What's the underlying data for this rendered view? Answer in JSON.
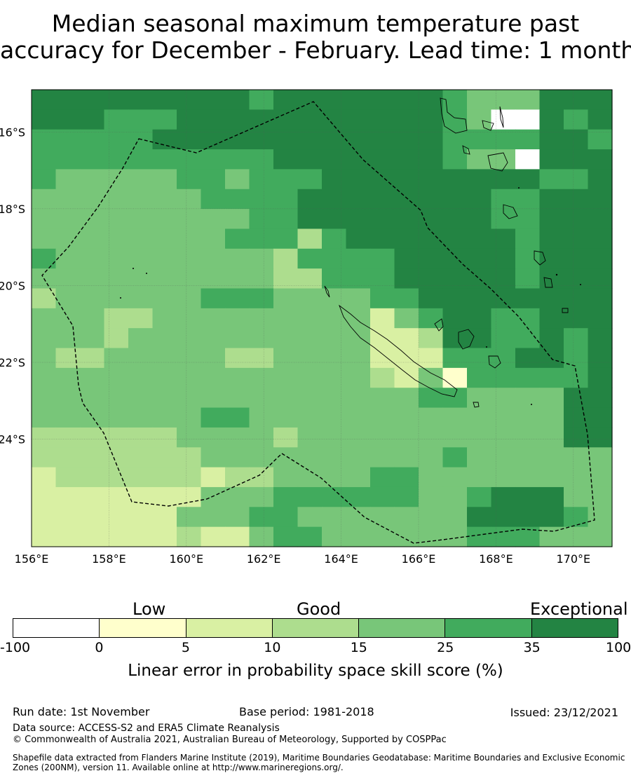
{
  "title": {
    "line1": "Median seasonal maximum temperature past",
    "line2": "accuracy for December - February. Lead time: 1 month"
  },
  "map": {
    "lon_labels": [
      "156°E",
      "158°E",
      "160°E",
      "162°E",
      "164°E",
      "166°E",
      "168°E",
      "170°E"
    ],
    "lat_labels": [
      "16°S",
      "18°S",
      "20°S",
      "22°S",
      "24°S"
    ],
    "lon_range": [
      156,
      171
    ],
    "lat_range": [
      -26.8,
      -14.9
    ],
    "grid_colors": {
      "0": "#ffffff",
      "1": "#ffffcc",
      "2": "#d9f0a3",
      "3": "#addd8e",
      "4": "#78c679",
      "5": "#41ab5d",
      "6": "#238443"
    },
    "grid_rows": [
      "666666666566666665444666",
      "666555666666666665400656",
      "555556666666666665555665",
      "555555555566666665440666",
      "544444554555666666666556",
      "444444455556666666655666",
      "444444444556666666655666",
      "444444445553566666665666",
      "544444444435555666665666",
      "444444444433555666665666",
      "344444455544445566666666",
      "444334444444442456655666",
      "444344444444442236655656",
      "433444443344442225556656",
      "444444444444443241555556",
      "444444444444444455444466",
      "444444455444444444444466",
      "333333444434444444444466",
      "333333344444444445444444",
      "233333323344445544444444",
      "222222244455555544566644",
      "222222444554444444666654",
      "222222322455444444555444"
    ]
  },
  "colorbar": {
    "category_labels": [
      "Low",
      "Good",
      "Exceptional"
    ],
    "ticks": [
      "-100",
      "0",
      "5",
      "10",
      "15",
      "25",
      "35",
      "100"
    ],
    "colors": [
      "#ffffff",
      "#ffffcc",
      "#d9f0a3",
      "#addd8e",
      "#78c679",
      "#41ab5d",
      "#238443"
    ],
    "title": "Linear error in probability space skill score (%)"
  },
  "footer": {
    "run_date": "Run date: 1st November",
    "base_period": "Base period: 1981-2018",
    "issued": "Issued: 23/12/2021",
    "data_source": "Data source: ACCESS-S2 and ERA5 Climate Reanalysis",
    "copyright": "© Commonwealth of Australia 2021, Australian Bureau of Meteorology, Supported by COSPPac",
    "shapefile_line1": "Shapefile data extracted from Flanders Marine Institute (2019), Maritime Boundaries Geodatabase: Maritime Boundaries and Exclusive Economic",
    "shapefile_line2": "Zones (200NM), version 11. Available online at http://www.marineregions.org/."
  }
}
